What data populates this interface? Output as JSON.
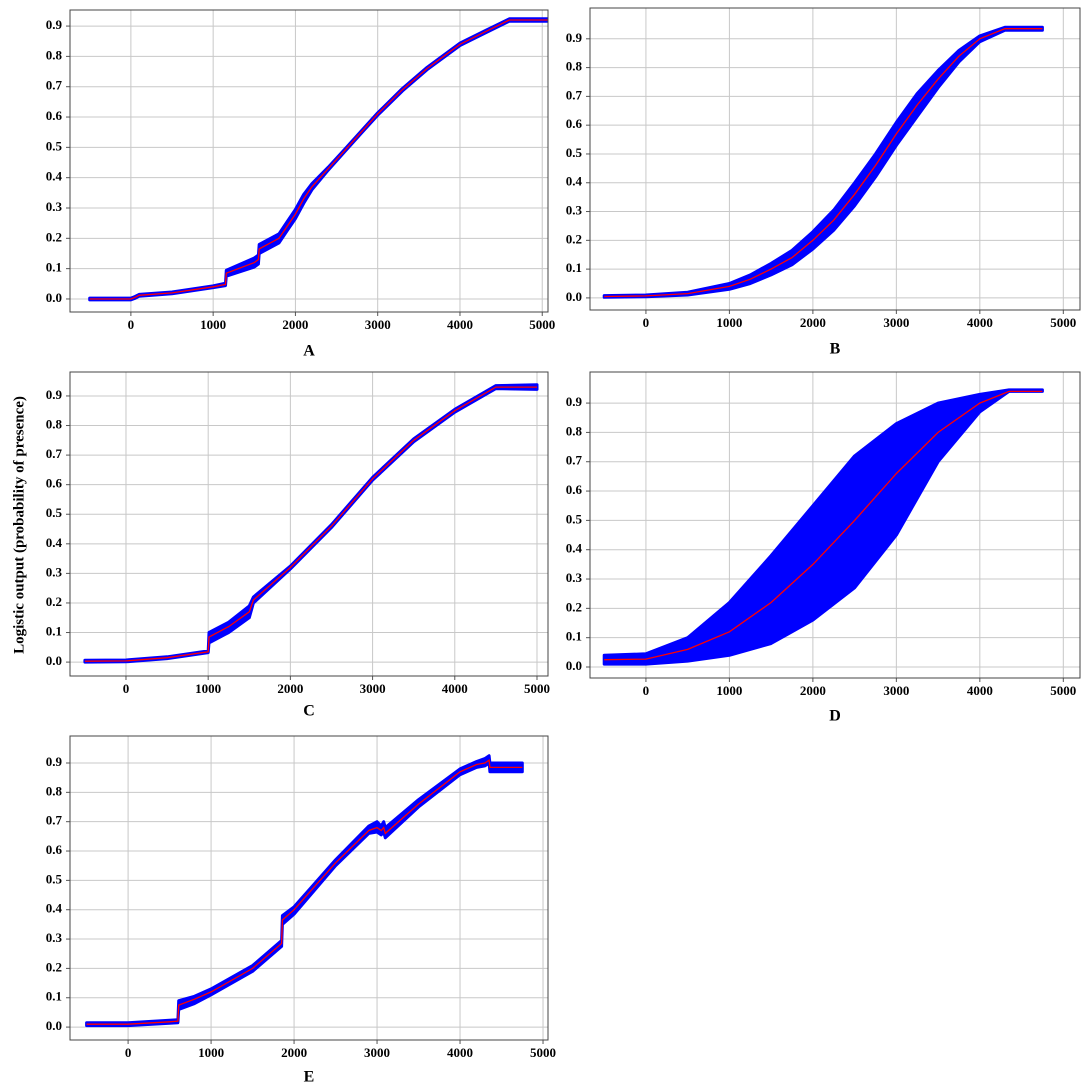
{
  "ylabel": "Logistic output (probability of presence)",
  "chart_data": [
    {
      "type": "line",
      "xlabel": "A",
      "grid": true,
      "color": "#ff0000",
      "band_color": "#0000ff",
      "xlim": [
        -740,
        5070
      ],
      "ylim": [
        -0.043,
        0.953
      ],
      "xticks": [
        0,
        1000,
        2000,
        3000,
        4000,
        5000
      ],
      "yticks": [
        {
          "value": 0,
          "label": "0.0"
        },
        0.1,
        0.2,
        0.3,
        0.4,
        0.5,
        0.6,
        0.7,
        0.8,
        0.9
      ],
      "x": [
        -500,
        0,
        50,
        100,
        500,
        1000,
        1150,
        1160,
        1500,
        1550,
        1560,
        1800,
        1900,
        2000,
        2100,
        2200,
        2400,
        2600,
        2800,
        3000,
        3300,
        3600,
        4000,
        4300,
        4600,
        5100
      ],
      "values": [
        0,
        0,
        0.005,
        0.012,
        0.02,
        0.04,
        0.048,
        0.085,
        0.12,
        0.13,
        0.165,
        0.2,
        0.24,
        0.28,
        0.33,
        0.37,
        0.43,
        0.49,
        0.55,
        0.61,
        0.69,
        0.76,
        0.84,
        0.88,
        0.92,
        0.92
      ],
      "band_lower": [
        -0.003,
        -0.003,
        0.002,
        0.009,
        0.017,
        0.037,
        0.044,
        0.075,
        0.105,
        0.115,
        0.15,
        0.185,
        0.225,
        0.265,
        0.315,
        0.36,
        0.425,
        0.486,
        0.546,
        0.606,
        0.686,
        0.756,
        0.836,
        0.876,
        0.916,
        0.916
      ],
      "band_upper": [
        0.003,
        0.003,
        0.008,
        0.015,
        0.023,
        0.043,
        0.052,
        0.095,
        0.135,
        0.145,
        0.18,
        0.215,
        0.255,
        0.295,
        0.345,
        0.38,
        0.435,
        0.494,
        0.554,
        0.614,
        0.694,
        0.764,
        0.844,
        0.884,
        0.924,
        0.924
      ]
    },
    {
      "type": "line",
      "xlabel": "B",
      "grid": true,
      "color": "#ff0000",
      "band_color": "#0000ff",
      "xlim": [
        -670,
        5200
      ],
      "ylim": [
        -0.042,
        1.007
      ],
      "xticks": [
        0,
        1000,
        2000,
        3000,
        4000,
        5000
      ],
      "yticks": [
        {
          "value": 0,
          "label": "0.0"
        },
        0.1,
        0.2,
        0.3,
        0.4,
        0.5,
        0.6,
        0.7,
        0.8,
        0.9
      ],
      "x": [
        -500,
        0,
        500,
        1000,
        1250,
        1500,
        1750,
        2000,
        2250,
        2500,
        2750,
        3000,
        3250,
        3500,
        3750,
        4000,
        4300,
        4750
      ],
      "values": [
        0.005,
        0.007,
        0.015,
        0.04,
        0.065,
        0.1,
        0.14,
        0.2,
        0.27,
        0.36,
        0.46,
        0.57,
        0.67,
        0.76,
        0.84,
        0.9,
        0.935,
        0.935
      ],
      "band_lower": [
        0.002,
        0.004,
        0.01,
        0.03,
        0.05,
        0.08,
        0.115,
        0.17,
        0.235,
        0.32,
        0.42,
        0.53,
        0.63,
        0.73,
        0.82,
        0.89,
        0.93,
        0.93
      ],
      "band_upper": [
        0.008,
        0.01,
        0.02,
        0.05,
        0.08,
        0.12,
        0.165,
        0.23,
        0.305,
        0.4,
        0.5,
        0.61,
        0.71,
        0.79,
        0.86,
        0.91,
        0.94,
        0.94
      ]
    },
    {
      "type": "line",
      "xlabel": "C",
      "grid": true,
      "color": "#ff0000",
      "band_color": "#0000ff",
      "xlim": [
        -681,
        5134
      ],
      "ylim": [
        -0.047,
        0.981
      ],
      "xticks": [
        0,
        1000,
        2000,
        3000,
        4000,
        5000
      ],
      "yticks": [
        {
          "value": 0,
          "label": "0.0"
        },
        0.1,
        0.2,
        0.3,
        0.4,
        0.5,
        0.6,
        0.7,
        0.8,
        0.9
      ],
      "x": [
        -500,
        0,
        500,
        1000,
        1010,
        1250,
        1500,
        1550,
        2000,
        2500,
        3000,
        3500,
        4000,
        4500,
        5000
      ],
      "values": [
        0.003,
        0.004,
        0.015,
        0.035,
        0.085,
        0.12,
        0.17,
        0.21,
        0.32,
        0.46,
        0.62,
        0.75,
        0.85,
        0.93,
        0.93
      ],
      "band_lower": [
        0,
        0.001,
        0.012,
        0.032,
        0.065,
        0.1,
        0.15,
        0.2,
        0.315,
        0.455,
        0.615,
        0.745,
        0.845,
        0.925,
        0.922
      ],
      "band_upper": [
        0.006,
        0.007,
        0.018,
        0.038,
        0.1,
        0.135,
        0.19,
        0.22,
        0.325,
        0.465,
        0.625,
        0.755,
        0.855,
        0.935,
        0.938
      ]
    },
    {
      "type": "line",
      "xlabel": "D",
      "grid": true,
      "color": "#ff0000",
      "band_color": "#0000ff",
      "xlim": [
        -670,
        5200
      ],
      "ylim": [
        -0.0375,
        1.006
      ],
      "xticks": [
        0,
        1000,
        2000,
        3000,
        4000,
        5000
      ],
      "yticks": [
        {
          "value": 0,
          "label": "0.0"
        },
        0.1,
        0.2,
        0.3,
        0.4,
        0.5,
        0.6,
        0.7,
        0.8,
        0.9
      ],
      "x": [
        -500,
        0,
        500,
        1000,
        1500,
        2000,
        2500,
        3000,
        3500,
        4000,
        4350,
        4750
      ],
      "values": [
        0.025,
        0.027,
        0.06,
        0.12,
        0.22,
        0.35,
        0.5,
        0.66,
        0.8,
        0.9,
        0.94,
        0.94
      ],
      "band_lower": [
        0.01,
        0.01,
        0.02,
        0.04,
        0.08,
        0.16,
        0.27,
        0.45,
        0.7,
        0.87,
        0.94,
        0.94
      ],
      "band_upper": [
        0.04,
        0.045,
        0.1,
        0.22,
        0.38,
        0.55,
        0.72,
        0.83,
        0.9,
        0.93,
        0.945,
        0.945
      ]
    },
    {
      "type": "line",
      "xlabel": "E",
      "grid": true,
      "color": "#ff0000",
      "band_color": "#0000ff",
      "xlim": [
        -700,
        5060
      ],
      "ylim": [
        -0.044,
        0.992
      ],
      "xticks": [
        0,
        1000,
        2000,
        3000,
        4000,
        5000
      ],
      "yticks": [
        {
          "value": 0,
          "label": "0.0"
        },
        0.1,
        0.2,
        0.3,
        0.4,
        0.5,
        0.6,
        0.7,
        0.8,
        0.9
      ],
      "x": [
        -500,
        0,
        500,
        600,
        610,
        800,
        1000,
        1500,
        1850,
        1860,
        2000,
        2500,
        2900,
        3000,
        3050,
        3080,
        3100,
        3500,
        4000,
        4200,
        4300,
        4350,
        4360,
        4750
      ],
      "values": [
        0.01,
        0.01,
        0.018,
        0.02,
        0.075,
        0.095,
        0.12,
        0.2,
        0.285,
        0.365,
        0.4,
        0.56,
        0.67,
        0.68,
        0.67,
        0.68,
        0.66,
        0.76,
        0.87,
        0.895,
        0.9,
        0.91,
        0.885,
        0.885
      ],
      "band_lower": [
        0.005,
        0.005,
        0.013,
        0.015,
        0.06,
        0.08,
        0.11,
        0.19,
        0.275,
        0.35,
        0.385,
        0.55,
        0.66,
        0.665,
        0.655,
        0.665,
        0.645,
        0.75,
        0.86,
        0.885,
        0.89,
        0.9,
        0.87,
        0.87
      ],
      "band_upper": [
        0.015,
        0.015,
        0.023,
        0.025,
        0.09,
        0.105,
        0.13,
        0.21,
        0.295,
        0.38,
        0.41,
        0.57,
        0.685,
        0.7,
        0.685,
        0.7,
        0.68,
        0.775,
        0.88,
        0.905,
        0.915,
        0.925,
        0.9,
        0.9
      ]
    }
  ]
}
